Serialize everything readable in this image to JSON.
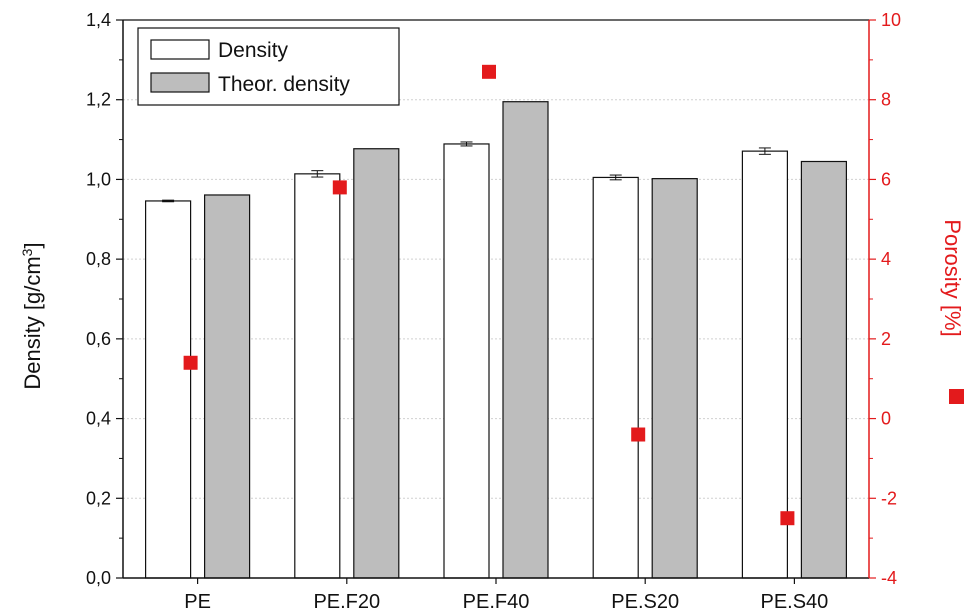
{
  "chart_data": {
    "type": "bar",
    "categories": [
      "PE",
      "PE.F20",
      "PE.F40",
      "PE.S20",
      "PE.S40"
    ],
    "series": [
      {
        "name": "Density",
        "values": [
          0.946,
          1.014,
          1.089,
          1.005,
          1.071
        ],
        "errors": [
          0.002,
          0.008,
          0.005,
          0.006,
          0.008
        ],
        "color": "#ffffff",
        "stroke": "#111111"
      },
      {
        "name": "Theor. density",
        "values": [
          0.961,
          1.077,
          1.195,
          1.002,
          1.045
        ],
        "color": "#bdbdbd",
        "stroke": "#111111"
      }
    ],
    "porosity": {
      "values": [
        1.4,
        5.8,
        8.7,
        -0.4,
        -2.5
      ],
      "color": "#e31a1c"
    },
    "ylabel": "Density [g/cm³]",
    "ylabel_main": "Density [g/cm",
    "ylabel_sup": "3",
    "ylabel_end": "]",
    "ylim": [
      0,
      1.4
    ],
    "yticks": [
      "0,0",
      "0,2",
      "0,4",
      "0,6",
      "0,8",
      "1,0",
      "1,2",
      "1,4"
    ],
    "y2label": "Porosity [%]",
    "y2lim": [
      -4,
      10
    ],
    "y2ticks": [
      "-4",
      "-2",
      "0",
      "2",
      "4",
      "6",
      "8",
      "10"
    ],
    "y2_color": "#e31a1c",
    "grid": true,
    "legend": "top-left"
  }
}
